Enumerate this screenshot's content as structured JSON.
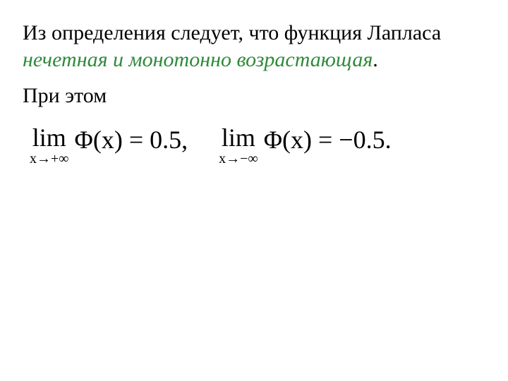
{
  "colors": {
    "text": "#000000",
    "emphasis": "#2f8a3a",
    "background": "#ffffff"
  },
  "typography": {
    "body_fontsize_pt": 22,
    "math_fontsize_pt": 27,
    "sub_fontsize_pt": 15,
    "font_family": "Times New Roman"
  },
  "para1": {
    "part1": "Из определения следует, что функция Лапласа ",
    "emph": "нечетная и монотонно возрастающая",
    "part2": "."
  },
  "para2": "При этом",
  "math": {
    "term1": {
      "lim": "lim",
      "sub": "x→+∞",
      "expr": " Φ(x) = 0.5,"
    },
    "term2": {
      "lim": "lim",
      "sub": "x→−∞",
      "expr": " Φ(x) = −0.5."
    }
  }
}
